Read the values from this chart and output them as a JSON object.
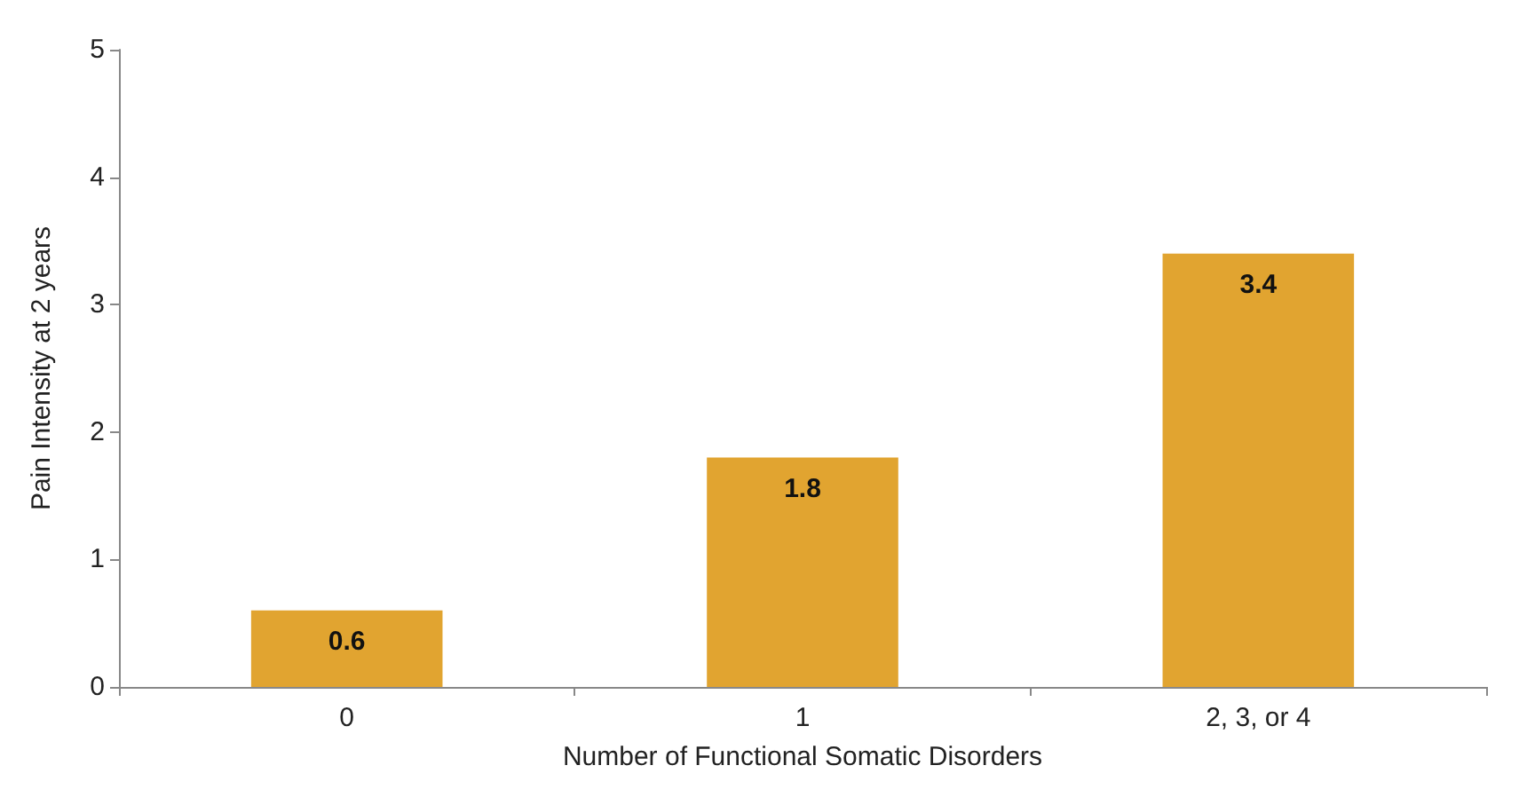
{
  "chart_data": {
    "type": "bar",
    "xlabel": "Number of Functional Somatic Disorders",
    "ylabel": "Pain Intensity at 2 years",
    "categories": [
      "0",
      "1",
      "2, 3, or 4"
    ],
    "values": [
      0.6,
      1.8,
      3.4
    ],
    "color": "#e1a430",
    "ylim": [
      0,
      5
    ],
    "yticks": [
      0,
      1,
      2,
      3,
      4,
      5
    ],
    "grid": false,
    "data_labels": true
  }
}
